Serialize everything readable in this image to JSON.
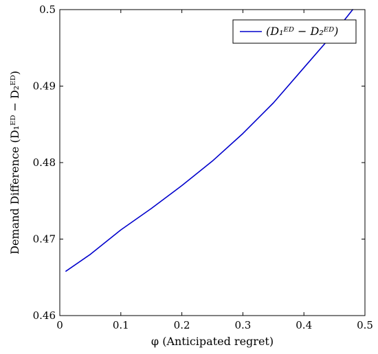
{
  "chart_data": {
    "type": "line",
    "xlabel": "φ (Anticipated regret)",
    "ylabel": "Demand Difference (D₁ᴱᴰ − D₂ᴱᴰ)",
    "xlim": [
      0,
      0.5
    ],
    "ylim": [
      0.46,
      0.5
    ],
    "x_ticks": [
      "0",
      "0.1",
      "0.2",
      "0.3",
      "0.4",
      "0.5"
    ],
    "y_ticks": [
      "0.46",
      "0.47",
      "0.48",
      "0.49",
      "0.5"
    ],
    "grid": false,
    "legend_position": "top-right",
    "series": [
      {
        "name": "(D₁ᴱᴰ − D₂ᴱᴰ)",
        "color": "#0000cc",
        "x": [
          0.01,
          0.05,
          0.1,
          0.15,
          0.2,
          0.25,
          0.3,
          0.35,
          0.4,
          0.45,
          0.48
        ],
        "y": [
          0.4658,
          0.468,
          0.4712,
          0.474,
          0.477,
          0.4802,
          0.4838,
          0.4878,
          0.4924,
          0.497,
          0.5
        ]
      }
    ]
  }
}
